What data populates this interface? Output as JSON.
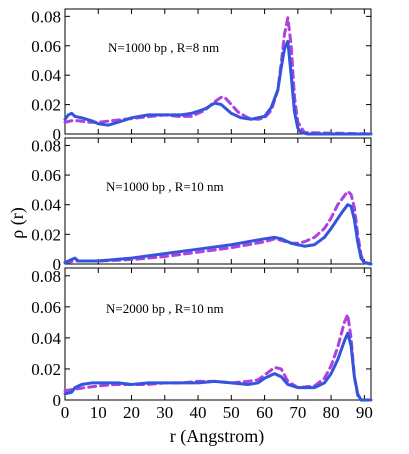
{
  "chart_data": {
    "type": "line",
    "xlabel": "r (Angstrom)",
    "ylabel": "ρ (r)",
    "xlim": [
      0,
      92
    ],
    "x_ticks": [
      "0",
      "10",
      "20",
      "30",
      "40",
      "50",
      "60",
      "70",
      "80",
      "90"
    ],
    "y_ticks": [
      "0",
      "0.02",
      "0.04",
      "0.06",
      "0.08"
    ],
    "colors": {
      "solid": "#3355dd",
      "dashed": "#b040e0"
    },
    "panels": [
      {
        "label": "N=1000 bp , R=8 nm",
        "ylim": [
          0,
          0.085
        ],
        "series": [
          {
            "style": "solid",
            "x": [
              0,
              1,
              2,
              3,
              5,
              8,
              10,
              13,
              16,
              20,
              25,
              30,
              35,
              38,
              42,
              45,
              47,
              50,
              53,
              56,
              60,
              62,
              64,
              65,
              66,
              67,
              68,
              69,
              70,
              71,
              73,
              92
            ],
            "y": [
              0.01,
              0.013,
              0.014,
              0.012,
              0.011,
              0.009,
              0.007,
              0.006,
              0.008,
              0.011,
              0.013,
              0.013,
              0.013,
              0.014,
              0.017,
              0.021,
              0.02,
              0.014,
              0.011,
              0.01,
              0.012,
              0.018,
              0.03,
              0.045,
              0.058,
              0.063,
              0.04,
              0.015,
              0.004,
              0.001,
              0,
              0
            ]
          },
          {
            "style": "dashed",
            "x": [
              0,
              2,
              4,
              7,
              10,
              14,
              18,
              22,
              26,
              30,
              34,
              38,
              42,
              45,
              47,
              48,
              50,
              52,
              55,
              58,
              60,
              62,
              64,
              65,
              66,
              67,
              68,
              69,
              70,
              72,
              92
            ],
            "y": [
              0.008,
              0.009,
              0.009,
              0.008,
              0.008,
              0.009,
              0.01,
              0.011,
              0.012,
              0.013,
              0.012,
              0.012,
              0.016,
              0.022,
              0.025,
              0.025,
              0.02,
              0.015,
              0.011,
              0.01,
              0.011,
              0.016,
              0.03,
              0.048,
              0.068,
              0.079,
              0.06,
              0.025,
              0.008,
              0.001,
              0
            ]
          }
        ]
      },
      {
        "label": "N=1000 bp , R=10 nm",
        "ylim": [
          0,
          0.085
        ],
        "series": [
          {
            "style": "solid",
            "x": [
              0,
              1,
              2,
              3,
              4,
              6,
              10,
              20,
              30,
              40,
              50,
              55,
              60,
              63,
              65,
              68,
              70,
              72,
              75,
              78,
              80,
              83,
              85,
              86,
              87,
              88,
              89,
              90,
              92
            ],
            "y": [
              0.001,
              0.002,
              0.003,
              0.004,
              0.002,
              0.002,
              0.002,
              0.004,
              0.007,
              0.01,
              0.013,
              0.015,
              0.017,
              0.018,
              0.017,
              0.014,
              0.013,
              0.012,
              0.013,
              0.018,
              0.024,
              0.034,
              0.04,
              0.039,
              0.03,
              0.015,
              0.004,
              0.001,
              0
            ]
          },
          {
            "style": "dashed",
            "x": [
              0,
              3,
              6,
              10,
              20,
              30,
              40,
              50,
              55,
              60,
              63,
              65,
              68,
              70,
              72,
              75,
              78,
              80,
              82,
              84,
              85,
              86,
              87,
              88,
              89,
              90,
              92
            ],
            "y": [
              0.001,
              0.002,
              0.002,
              0.002,
              0.003,
              0.005,
              0.008,
              0.011,
              0.013,
              0.015,
              0.017,
              0.016,
              0.014,
              0.014,
              0.015,
              0.018,
              0.024,
              0.031,
              0.04,
              0.046,
              0.049,
              0.047,
              0.038,
              0.02,
              0.006,
              0.001,
              0
            ]
          }
        ]
      },
      {
        "label": "N=2000 bp , R=10 nm",
        "ylim": [
          0,
          0.085
        ],
        "series": [
          {
            "style": "solid",
            "x": [
              0,
              2,
              3,
              5,
              8,
              10,
              13,
              16,
              20,
              25,
              30,
              35,
              40,
              45,
              50,
              55,
              58,
              60,
              63,
              65,
              67,
              70,
              75,
              78,
              80,
              82,
              84,
              85,
              86,
              87,
              88,
              89,
              92
            ],
            "y": [
              0.004,
              0.005,
              0.008,
              0.01,
              0.011,
              0.011,
              0.011,
              0.011,
              0.01,
              0.011,
              0.011,
              0.011,
              0.011,
              0.012,
              0.011,
              0.01,
              0.011,
              0.014,
              0.017,
              0.015,
              0.01,
              0.008,
              0.008,
              0.011,
              0.017,
              0.026,
              0.038,
              0.043,
              0.035,
              0.015,
              0.004,
              0,
              0
            ]
          },
          {
            "style": "dashed",
            "x": [
              0,
              3,
              6,
              10,
              15,
              20,
              25,
              30,
              35,
              40,
              45,
              50,
              55,
              58,
              60,
              63,
              65,
              67,
              70,
              75,
              78,
              80,
              82,
              84,
              85,
              86,
              87,
              88,
              89,
              92
            ],
            "y": [
              0.006,
              0.007,
              0.008,
              0.009,
              0.01,
              0.01,
              0.01,
              0.011,
              0.011,
              0.012,
              0.012,
              0.011,
              0.012,
              0.013,
              0.016,
              0.021,
              0.02,
              0.012,
              0.008,
              0.009,
              0.014,
              0.022,
              0.034,
              0.05,
              0.055,
              0.04,
              0.015,
              0.003,
              0,
              0
            ]
          }
        ]
      }
    ]
  }
}
